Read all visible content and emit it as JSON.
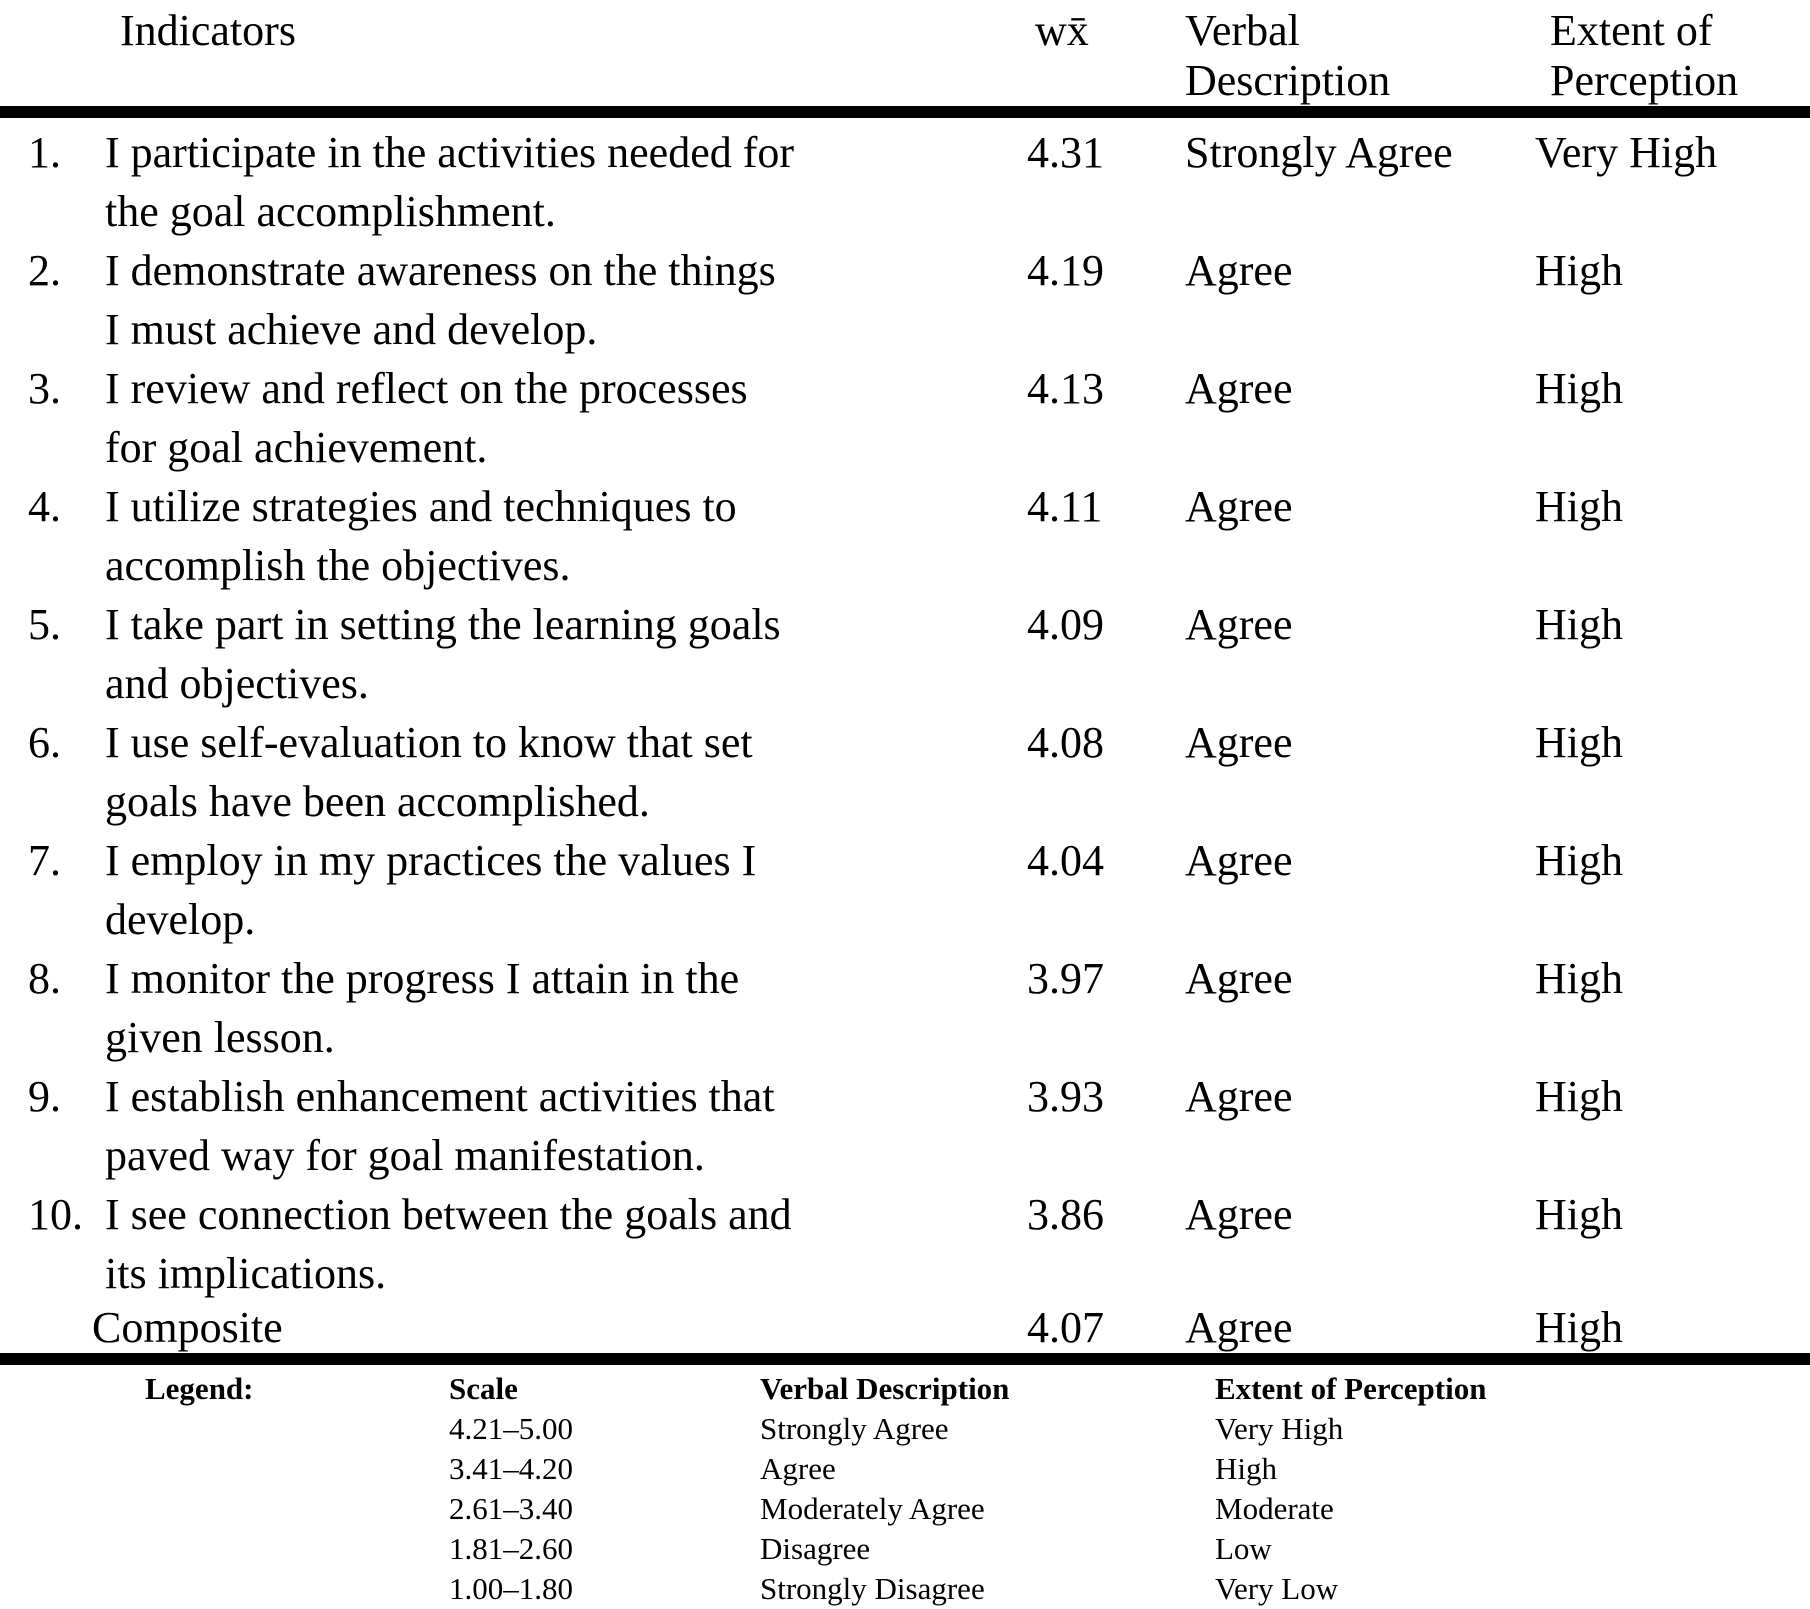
{
  "table": {
    "header": {
      "indicators": "Indicators",
      "weighted_mean": "wx̄",
      "verbal": [
        "Verbal",
        "Description"
      ],
      "extent": [
        "Extent of",
        "Perception"
      ]
    },
    "rows": [
      {
        "no": "1.",
        "indicator": [
          "I participate in the activities needed for",
          "the goal accomplishment."
        ],
        "wm": "4.31",
        "verbal": "Strongly Agree",
        "extent": "Very High"
      },
      {
        "no": "2.",
        "indicator": [
          "I demonstrate awareness on the things",
          "I must achieve and develop."
        ],
        "wm": "4.19",
        "verbal": "Agree",
        "extent": "High"
      },
      {
        "no": "3.",
        "indicator": [
          "I review and reflect on the processes",
          "for goal achievement."
        ],
        "wm": "4.13",
        "verbal": "Agree",
        "extent": "High"
      },
      {
        "no": "4.",
        "indicator": [
          "I utilize strategies and techniques to",
          "accomplish the objectives."
        ],
        "wm": "4.11",
        "verbal": "Agree",
        "extent": "High"
      },
      {
        "no": "5.",
        "indicator": [
          "I take part in setting the learning goals",
          "and objectives."
        ],
        "wm": "4.09",
        "verbal": "Agree",
        "extent": "High"
      },
      {
        "no": "6.",
        "indicator": [
          "I use self-evaluation to know that set",
          "goals have been accomplished."
        ],
        "wm": "4.08",
        "verbal": "Agree",
        "extent": "High"
      },
      {
        "no": "7.",
        "indicator": [
          "I employ in my practices the values I",
          "develop."
        ],
        "wm": "4.04",
        "verbal": "Agree",
        "extent": "High"
      },
      {
        "no": "8.",
        "indicator": [
          "I monitor the progress I attain in the",
          "given lesson."
        ],
        "wm": "3.97",
        "verbal": "Agree",
        "extent": "High"
      },
      {
        "no": "9.",
        "indicator": [
          "I establish enhancement activities that",
          "paved way for goal manifestation."
        ],
        "wm": "3.93",
        "verbal": "Agree",
        "extent": "High"
      },
      {
        "no": "10.",
        "indicator": [
          "I see connection between the goals and",
          "its implications."
        ],
        "wm": "3.86",
        "verbal": "Agree",
        "extent": "High"
      }
    ],
    "composite": {
      "label": "Composite",
      "wm": "4.07",
      "verbal": "Agree",
      "extent": "High"
    }
  },
  "legend": {
    "title": "Legend:",
    "columns": {
      "scale": "Scale",
      "verbal": "Verbal Description",
      "extent": "Extent of Perception"
    },
    "rows": [
      {
        "scale": "4.21–5.00",
        "verbal": "Strongly Agree",
        "extent": "Very High"
      },
      {
        "scale": "3.41–4.20",
        "verbal": "Agree",
        "extent": "High"
      },
      {
        "scale": "2.61–3.40",
        "verbal": "Moderately Agree",
        "extent": "Moderate"
      },
      {
        "scale": "1.81–2.60",
        "verbal": "Disagree",
        "extent": "Low"
      },
      {
        "scale": "1.00–1.80",
        "verbal": "Strongly Disagree",
        "extent": "Very Low"
      }
    ]
  },
  "colors": {
    "text": "#000000",
    "background": "#ffffff",
    "rule": "#000000"
  }
}
